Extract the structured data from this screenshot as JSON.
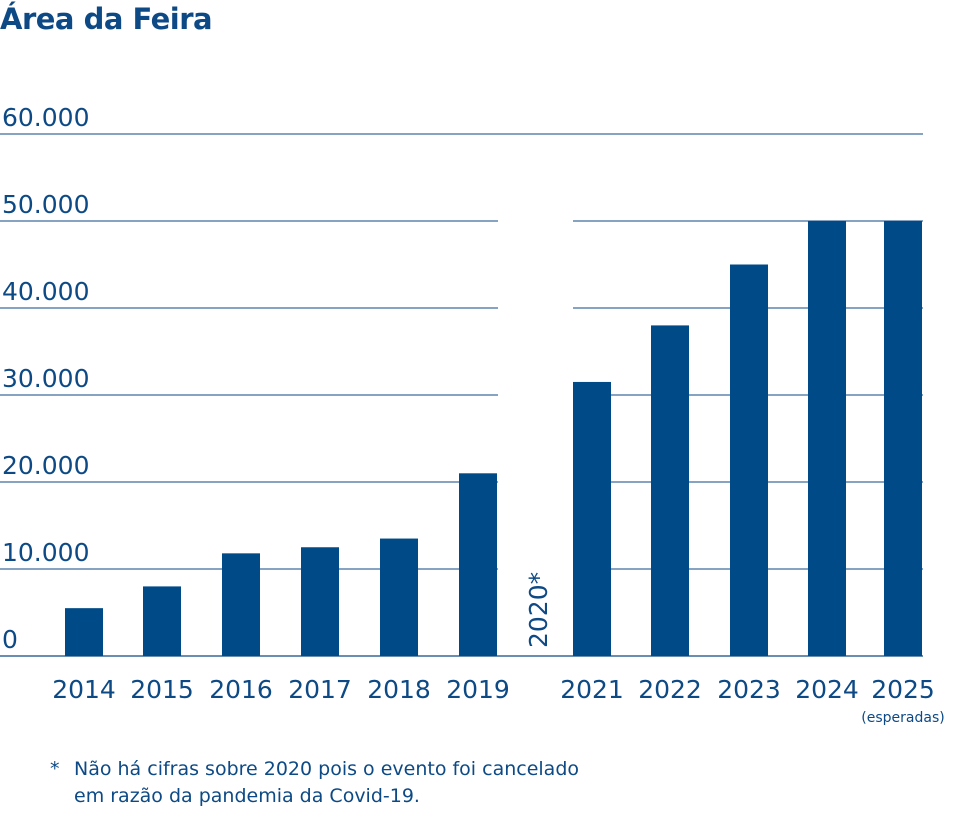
{
  "chart_data": {
    "type": "bar",
    "title": "Área da Feira",
    "categories": [
      "2014",
      "2015",
      "2016",
      "2017",
      "2018",
      "2019",
      "2020*",
      "2021",
      "2022",
      "2023",
      "2024",
      "2025"
    ],
    "values": [
      5500,
      8000,
      11800,
      12500,
      13500,
      21000,
      null,
      31500,
      38000,
      45000,
      50000,
      50000
    ],
    "ylim": [
      0,
      60000
    ],
    "yticks": [
      "0",
      "10.000",
      "20.000",
      "30.000",
      "40.000",
      "50.000",
      "60.000"
    ],
    "gap_label": "2020*",
    "last_bar_note": "(esperadas)",
    "grid": true,
    "bar_color": "#004b87"
  },
  "footnote": {
    "star": "*",
    "line1": "Não há cifras sobre 2020 pois o evento foi cancelado",
    "line2": "em razão da pandemia da Covid-19."
  },
  "colors": {
    "text": "#0d4a85",
    "bar": "#004b87",
    "grid": "#0d4a85"
  }
}
